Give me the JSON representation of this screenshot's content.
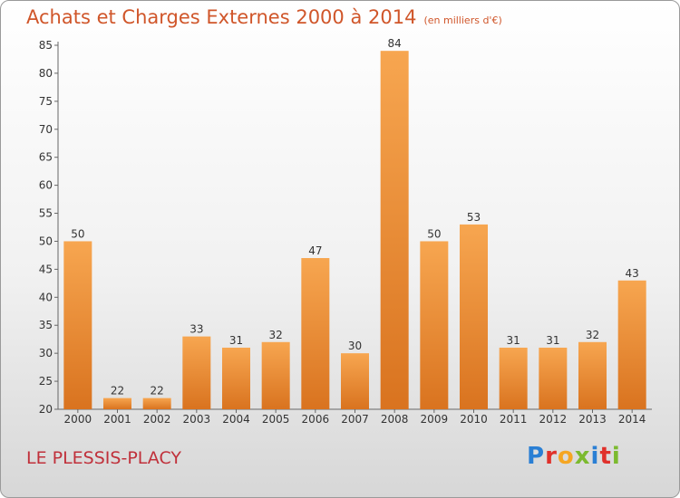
{
  "title": "Achats et Charges Externes 2000 à 2014",
  "subtitle": "(en milliers d'€)",
  "location": "LE PLESSIS-PLACY",
  "logo": {
    "text": "Proxiti",
    "colors": [
      "#2a7fd4",
      "#e0312b",
      "#f5a623",
      "#7cba2f",
      "#2a7fd4",
      "#e0312b",
      "#7cba2f"
    ]
  },
  "colors": {
    "bar_top": "#f7a650",
    "bar_bottom": "#d9731f",
    "title": "#d0562a"
  },
  "chart_data": {
    "type": "bar",
    "categories": [
      "2000",
      "2001",
      "2002",
      "2003",
      "2004",
      "2005",
      "2006",
      "2007",
      "2008",
      "2009",
      "2010",
      "2011",
      "2012",
      "2013",
      "2014"
    ],
    "values": [
      50,
      22,
      22,
      33,
      31,
      32,
      47,
      30,
      84,
      50,
      53,
      31,
      31,
      32,
      43
    ],
    "ylim": [
      20,
      85
    ],
    "yticks": [
      20,
      25,
      30,
      35,
      40,
      45,
      50,
      55,
      60,
      65,
      70,
      75,
      80,
      85
    ],
    "grid": false,
    "xlabel": "",
    "ylabel": ""
  }
}
